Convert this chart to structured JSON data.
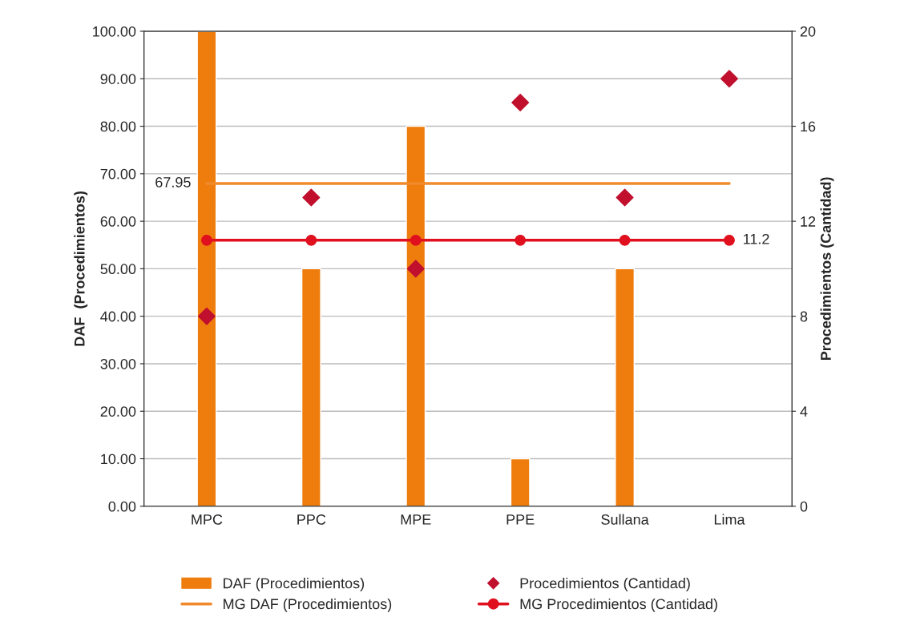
{
  "chart_data": {
    "type": "bar",
    "categories": [
      "MPC",
      "PPC",
      "MPE",
      "PPE",
      "Sullana",
      "Lima"
    ],
    "series": [
      {
        "name": "DAF (Procedimientos)",
        "color": "#ee7d0e",
        "values": [
          100,
          50,
          80,
          10,
          50,
          null
        ]
      },
      {
        "name": "MG DAF (Procedimientos)",
        "type": "line",
        "color": "#f08a2c",
        "marker": "none",
        "values": [
          67.95,
          67.95,
          67.95,
          67.95,
          67.95,
          67.95
        ],
        "value_labels": [
          "67.95",
          null,
          null,
          null,
          null,
          null
        ]
      },
      {
        "name": "Procedimientos (Cantidad)",
        "type": "scatter",
        "axis": "y2",
        "color": "#c0102e",
        "marker": "diamond",
        "values": [
          8,
          13,
          10,
          17,
          13,
          18
        ]
      },
      {
        "name": "MG Procedimientos (Cantidad)",
        "type": "line",
        "axis": "y2",
        "color": "#e0101e",
        "marker": "circle",
        "values": [
          11.2,
          11.2,
          11.2,
          11.2,
          11.2,
          11.2
        ],
        "value_labels": [
          null,
          null,
          null,
          null,
          null,
          "11.2"
        ]
      }
    ],
    "ylabel": "DAF  (Procedimientos)",
    "y2label": "Procedimientos (Cantidad)",
    "ylim": [
      0,
      100
    ],
    "yticks": [
      {
        "value": 0,
        "label": "0.00"
      },
      {
        "value": 10,
        "label": "10.00"
      },
      {
        "value": 20,
        "label": "20.00"
      },
      {
        "value": 30,
        "label": "30.00"
      },
      {
        "value": 40,
        "label": "40.00"
      },
      {
        "value": 50,
        "label": "50.00"
      },
      {
        "value": 60,
        "label": "60.00"
      },
      {
        "value": 70,
        "label": "70.00"
      },
      {
        "value": 80,
        "label": "80.00"
      },
      {
        "value": 90,
        "label": "90.00"
      },
      {
        "value": 100,
        "label": "100.00"
      }
    ],
    "y2lim": [
      0,
      20
    ],
    "y2ticks": [
      0,
      4,
      8,
      12,
      16,
      20
    ],
    "grid": "y",
    "legend": "bottom"
  }
}
